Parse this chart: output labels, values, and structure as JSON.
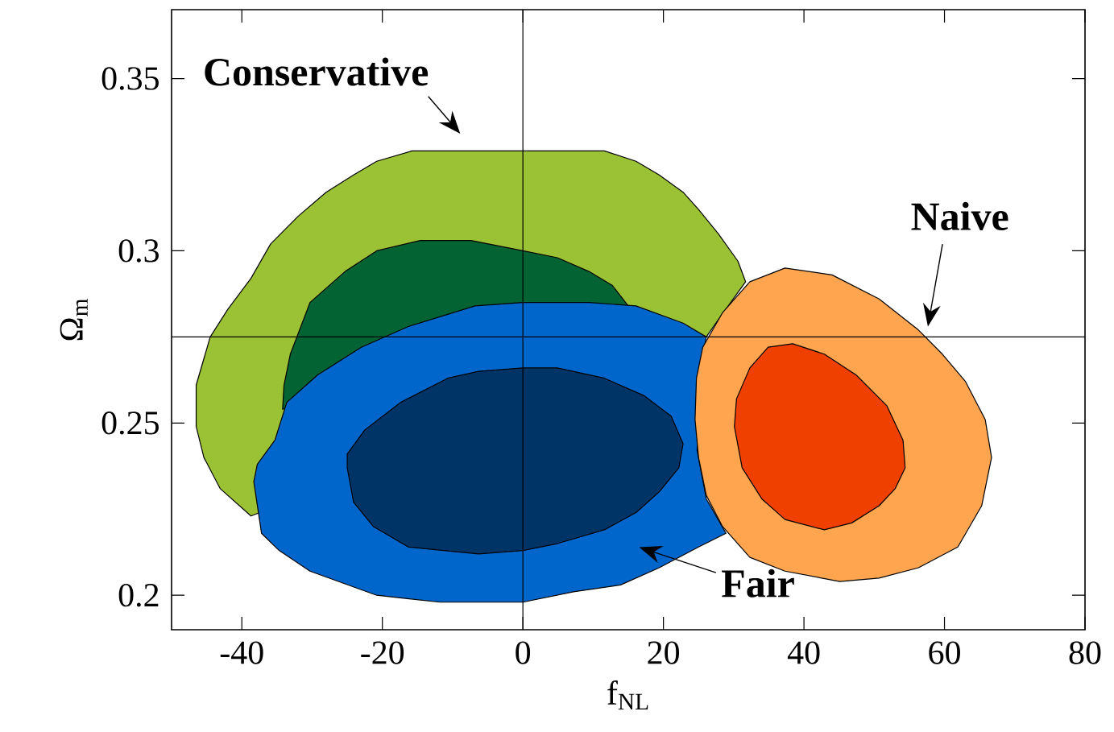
{
  "chart_data": {
    "type": "area",
    "xlabel": "f$_{NL}$",
    "ylabel": "Ω$_{m}$",
    "xlim": [
      -50,
      80
    ],
    "ylim": [
      0.19,
      0.37
    ],
    "xticks": [
      -40,
      -20,
      0,
      20,
      40,
      60,
      80
    ],
    "yticks": [
      0.2,
      0.25,
      0.3,
      0.35
    ],
    "grid": false,
    "ref_lines": [
      {
        "axis": "x",
        "value": 0
      },
      {
        "axis": "y",
        "value": 0.275
      }
    ],
    "annotations": [
      "Conservative",
      "Naive",
      "Fair"
    ],
    "series": [
      {
        "color": "#9bc234",
        "x": [
          -44.5,
          -46.5,
          -46.5,
          -45.4,
          -43.1,
          -38.7,
          null,
          null,
          26.1,
          27.8,
          31.7,
          30.6,
          27.8,
          25.0,
          22.8,
          19.4,
          16.1,
          11.6,
          0,
          -7.4,
          -15.8,
          -20.8,
          -24.1,
          -28.0,
          -32.0,
          -35.9,
          -38.7,
          -42.0
        ],
        "values": [
          0.275,
          0.261,
          0.249,
          0.24,
          0.231,
          0.223,
          null,
          null,
          0.275,
          0.28,
          0.291,
          0.297,
          0.305,
          0.312,
          0.317,
          0.322,
          0.326,
          0.329,
          0.329,
          0.329,
          0.329,
          0.326,
          0.322,
          0.317,
          0.31,
          0.302,
          0.292,
          0.283
        ]
      },
      {
        "color": "#036333",
        "x": [
          -34.2,
          -34.0,
          -33.1,
          -30.3,
          -25.3,
          -20.8,
          -14.6,
          -7.4,
          0,
          4.9,
          9.4,
          12.7,
          15.0,
          null,
          null,
          null
        ],
        "values": [
          0.254,
          0.261,
          0.27,
          0.285,
          0.294,
          0.3,
          0.303,
          0.303,
          0.3,
          0.298,
          0.294,
          0.29,
          0.284,
          null,
          null,
          null
        ]
      },
      {
        "color": "#0066cc",
        "x": [
          -38.3,
          -37.2,
          -34.7,
          -30.3,
          -20.8,
          -11.8,
          0,
          7.2,
          13.9,
          19.4,
          25.0,
          28.9,
          26.1,
          24.8,
          25.0,
          26.1,
          22.8,
          16.1,
          9.4,
          0,
          -6.8,
          -16.3,
          -23.0,
          -29.2,
          -33.6,
          -35.3,
          -37.8
        ],
        "values": [
          0.233,
          0.218,
          0.213,
          0.207,
          0.2,
          0.198,
          0.198,
          0.201,
          0.203,
          0.208,
          0.214,
          0.218,
          0.228,
          0.242,
          0.263,
          0.275,
          0.279,
          0.284,
          0.285,
          0.285,
          0.284,
          0.278,
          0.272,
          0.264,
          0.256,
          0.245,
          0.238
        ]
      },
      {
        "color": "#003366",
        "x": [
          -25.0,
          -25.0,
          -22.5,
          -17.4,
          -10.7,
          -6.3,
          0,
          4.9,
          11.6,
          17.2,
          21.1,
          22.8,
          22.2,
          19.4,
          16.1,
          11.6,
          4.9,
          0,
          -6.3,
          -11.3,
          -16.3,
          -21.3,
          -24.1
        ],
        "values": [
          0.237,
          0.241,
          0.248,
          0.256,
          0.263,
          0.265,
          0.266,
          0.266,
          0.263,
          0.258,
          0.252,
          0.244,
          0.237,
          0.23,
          0.224,
          0.219,
          0.215,
          0.213,
          0.212,
          0.213,
          0.214,
          0.22,
          0.227
        ]
      },
      {
        "color": "#ffa54f",
        "x": [
          24.7,
          24.5,
          25.0,
          26.1,
          28.4,
          32.3,
          37.3,
          45.1,
          50.7,
          56.3,
          61.9,
          65.3,
          66.7,
          65.8,
          63.0,
          59.7,
          56.3,
          50.7,
          44.0,
          37.3,
          32.3,
          28.4,
          25.6
        ],
        "values": [
          0.263,
          0.251,
          0.24,
          0.229,
          0.22,
          0.211,
          0.207,
          0.204,
          0.205,
          0.208,
          0.214,
          0.226,
          0.24,
          0.251,
          0.262,
          0.27,
          0.277,
          0.286,
          0.293,
          0.295,
          0.291,
          0.282,
          0.272
        ]
      },
      {
        "color": "#ef4000",
        "x": [
          30.1,
          30.4,
          32.3,
          34.9,
          38.4,
          42.9,
          47.4,
          51.8,
          54.1,
          54.4,
          53.0,
          50.7,
          46.8,
          42.9,
          37.3,
          34.0,
          31.2
        ],
        "values": [
          0.249,
          0.257,
          0.266,
          0.272,
          0.273,
          0.27,
          0.264,
          0.255,
          0.245,
          0.237,
          0.231,
          0.226,
          0.221,
          0.219,
          0.222,
          0.228,
          0.237
        ]
      }
    ]
  }
}
